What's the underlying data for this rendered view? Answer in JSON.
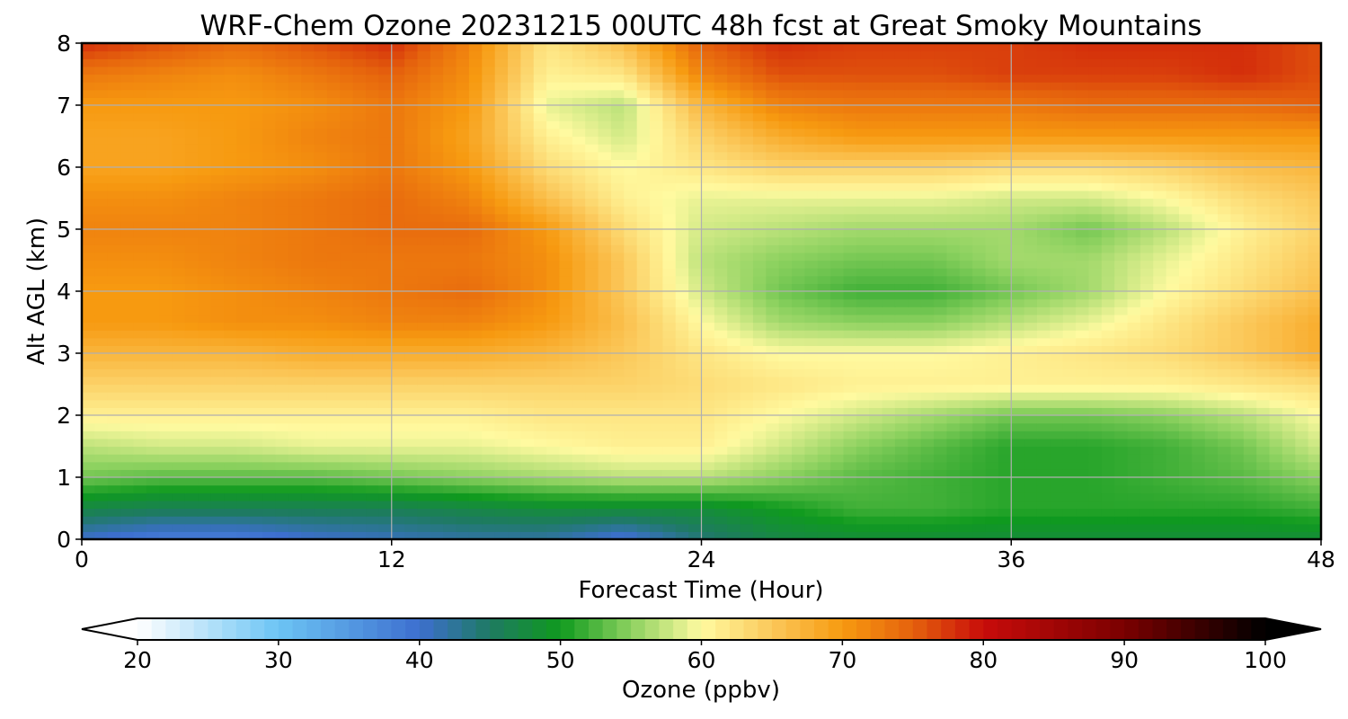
{
  "chart_data": {
    "type": "heatmap",
    "title": "WRF-Chem Ozone  20231215 00UTC 48h fcst at Great Smoky Mountains",
    "xlabel": "Forecast Time (Hour)",
    "ylabel": "Alt AGL (km)",
    "xlim": [
      0,
      48
    ],
    "ylim": [
      0,
      8
    ],
    "x_ticks": [
      0,
      12,
      24,
      36,
      48
    ],
    "y_ticks": [
      0,
      1,
      2,
      3,
      4,
      5,
      6,
      7,
      8
    ],
    "grid": true,
    "x_hours": [
      0,
      3,
      6,
      9,
      12,
      15,
      18,
      21,
      24,
      27,
      30,
      33,
      36,
      39,
      42,
      45,
      48
    ],
    "altitude_km": [
      0,
      0.5,
      1,
      1.5,
      2,
      2.5,
      3,
      3.5,
      4,
      4.5,
      5,
      5.5,
      6,
      6.5,
      7,
      7.5,
      8
    ],
    "ozone_ppbv": [
      [
        40,
        38,
        38,
        40,
        41,
        42,
        42,
        39,
        44,
        47,
        48,
        48,
        48,
        48,
        48,
        48,
        48
      ],
      [
        47,
        46,
        46,
        46,
        46,
        47,
        48,
        48,
        48,
        50,
        52,
        52,
        51,
        51,
        51,
        51,
        52
      ],
      [
        54,
        53,
        53,
        53,
        54,
        55,
        56,
        57,
        57,
        55,
        53,
        52,
        51,
        51,
        52,
        53,
        55
      ],
      [
        57,
        58,
        58,
        59,
        59,
        59,
        60,
        61,
        61,
        58,
        55,
        53,
        51,
        51,
        52,
        54,
        58
      ],
      [
        61,
        61,
        61,
        61,
        61,
        61,
        62,
        62,
        62,
        60,
        58,
        56,
        54,
        54,
        55,
        57,
        60
      ],
      [
        64,
        64,
        64,
        64,
        64,
        64,
        64,
        64,
        63,
        62,
        61,
        61,
        61,
        61,
        61,
        62,
        63
      ],
      [
        67,
        67,
        67,
        68,
        68,
        68,
        67,
        65,
        62,
        60,
        60,
        60,
        61,
        62,
        63,
        65,
        68
      ],
      [
        70,
        70,
        71,
        71,
        72,
        72,
        70,
        66,
        60,
        56,
        55,
        55,
        57,
        59,
        62,
        65,
        68
      ],
      [
        70,
        70,
        71,
        72,
        73,
        74,
        71,
        65,
        58,
        54,
        52,
        52,
        54,
        56,
        60,
        63,
        66
      ],
      [
        71,
        71,
        72,
        73,
        73,
        73,
        71,
        65,
        57,
        55,
        54,
        54,
        56,
        56,
        59,
        62,
        65
      ],
      [
        72,
        72,
        72,
        73,
        74,
        74,
        70,
        63,
        58,
        57,
        56,
        56,
        56,
        54,
        57,
        61,
        64
      ],
      [
        71,
        71,
        72,
        73,
        74,
        72,
        66,
        61,
        59,
        59,
        59,
        59,
        58,
        58,
        60,
        63,
        65
      ],
      [
        69,
        69,
        70,
        71,
        73,
        70,
        63,
        60,
        62,
        64,
        64,
        64,
        63,
        63,
        64,
        66,
        67
      ],
      [
        69,
        69,
        70,
        72,
        73,
        69,
        61,
        58,
        64,
        68,
        70,
        70,
        70,
        70,
        70,
        70,
        70
      ],
      [
        70,
        70,
        70,
        71,
        73,
        70,
        59,
        57,
        67,
        72,
        73,
        73,
        73,
        74,
        74,
        74,
        75
      ],
      [
        73,
        72,
        71,
        73,
        75,
        71,
        61,
        62,
        72,
        76,
        76,
        76,
        77,
        77,
        77,
        78,
        76
      ],
      [
        78,
        76,
        74,
        76,
        78,
        72,
        62,
        66,
        75,
        78,
        77,
        77,
        77,
        78,
        78,
        78,
        76
      ]
    ],
    "colorbar": {
      "label": "Ozone  (ppbv)",
      "range": [
        20,
        100
      ],
      "ticks": [
        20,
        30,
        40,
        50,
        60,
        70,
        80,
        90,
        100
      ],
      "extend": "both",
      "color_stops": [
        {
          "v": 20,
          "c": "#ffffff"
        },
        {
          "v": 30,
          "c": "#6cc4f4"
        },
        {
          "v": 40,
          "c": "#3d6fcf"
        },
        {
          "v": 45,
          "c": "#1e7a62"
        },
        {
          "v": 50,
          "c": "#0f9a1e"
        },
        {
          "v": 55,
          "c": "#8cd15f"
        },
        {
          "v": 60,
          "c": "#fffaa0"
        },
        {
          "v": 65,
          "c": "#fbc85a"
        },
        {
          "v": 70,
          "c": "#f79a10"
        },
        {
          "v": 75,
          "c": "#e5610d"
        },
        {
          "v": 80,
          "c": "#c80c0a"
        },
        {
          "v": 90,
          "c": "#7a0000"
        },
        {
          "v": 100,
          "c": "#000000"
        }
      ]
    }
  }
}
